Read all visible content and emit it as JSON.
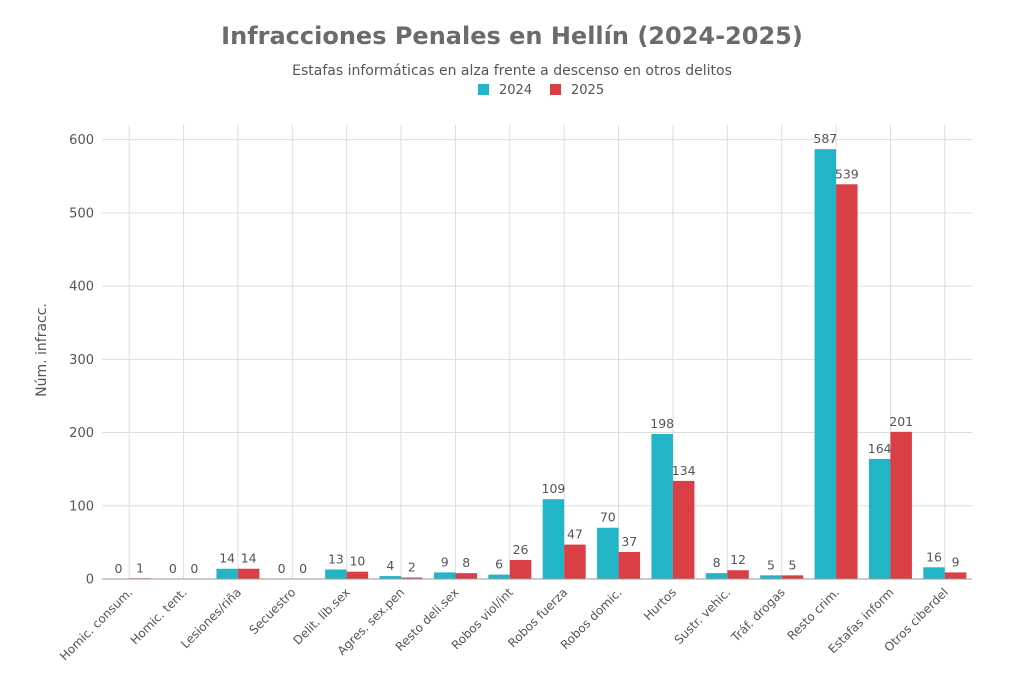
{
  "chart_data": {
    "type": "bar",
    "title": "Infracciones Penales en Hellín (2024-2025)",
    "subtitle": "Estafas informáticas en alza frente a descenso en otros delitos",
    "xlabel": "",
    "ylabel": "Núm. infracc.",
    "ylim": [
      0,
      620
    ],
    "yticks": [
      0,
      100,
      200,
      300,
      400,
      500,
      600
    ],
    "grid": true,
    "legend_position": "top-center",
    "categories": [
      "Homic. consum.",
      "Homic. tent.",
      "Lesiones/riña",
      "Secuestro",
      "Delit. lib.sex",
      "Agres. sex.pen",
      "Resto deli.sex",
      "Robos viol/int",
      "Robos fuerza",
      "Robos domic.",
      "Hurtos",
      "Sustr. vehic.",
      "Tráf. drogas",
      "Resto crim.",
      "Estafas inform",
      "Otros ciberdel"
    ],
    "series": [
      {
        "name": "2024",
        "color": "#22b5c8",
        "values": [
          0,
          0,
          14,
          0,
          13,
          4,
          9,
          6,
          109,
          70,
          198,
          8,
          5,
          587,
          164,
          16
        ]
      },
      {
        "name": "2025",
        "color": "#d93f44",
        "values": [
          1,
          0,
          14,
          0,
          10,
          2,
          8,
          26,
          47,
          37,
          134,
          12,
          5,
          539,
          201,
          9
        ]
      }
    ]
  }
}
